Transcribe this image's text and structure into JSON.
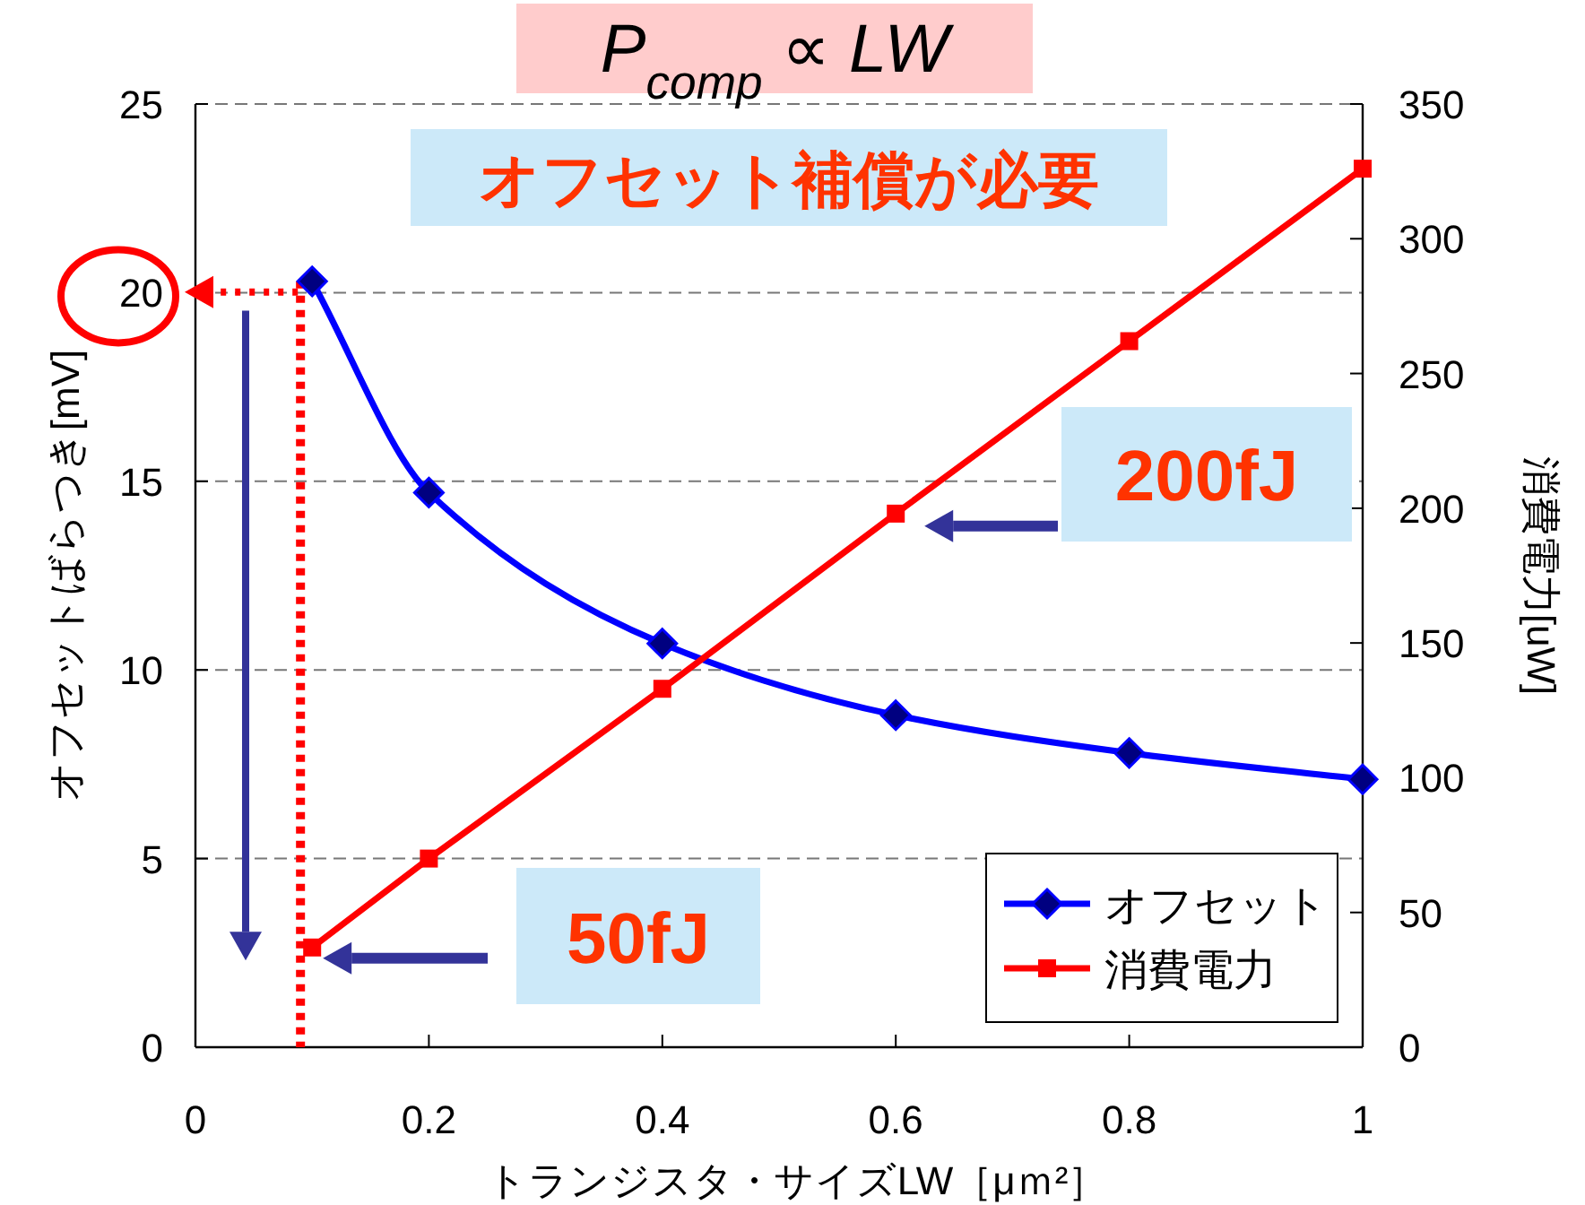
{
  "chart_data": {
    "type": "line",
    "title": "P$_{comp}$ ∝ LW",
    "xlabel": "トランジスタ・サイズLW［μｍ²］",
    "ylabel": "オフセットばらつき[mV]",
    "y2label": "消費電力[uW]",
    "annotations": [
      "オフセット補償が必要",
      "200fJ",
      "50fJ"
    ],
    "series": [
      {
        "name": "オフセット",
        "color": "#0000ff",
        "marker": "diamond",
        "x": [
          0.1,
          0.2,
          0.4,
          0.6,
          0.8,
          1
        ],
        "values": [
          20.3,
          14.7,
          10.7,
          8.8,
          7.8,
          7.1
        ]
      },
      {
        "name": "消費電力",
        "color": "#ff0000",
        "marker": "square",
        "axis": "y2",
        "x": [
          0.1,
          0.2,
          0.4,
          0.6,
          0.8,
          1
        ],
        "values": [
          37,
          70,
          133,
          198,
          262,
          326
        ]
      }
    ],
    "xlim": [
      0,
      1
    ],
    "xticks": [
      0,
      0.2,
      0.4,
      0.6,
      0.8,
      1
    ],
    "ylim": [
      0,
      25
    ],
    "yticks": [
      0,
      5,
      10,
      15,
      20,
      25
    ],
    "y2lim": [
      0,
      350
    ],
    "y2ticks": [
      0,
      50,
      100,
      150,
      200,
      250,
      300,
      350
    ],
    "ref_lines": [
      {
        "axis": "x",
        "value": 0.09,
        "color": "#ff0000",
        "line_style": "dotted"
      }
    ],
    "grid": "y",
    "legend": "bottom right"
  }
}
